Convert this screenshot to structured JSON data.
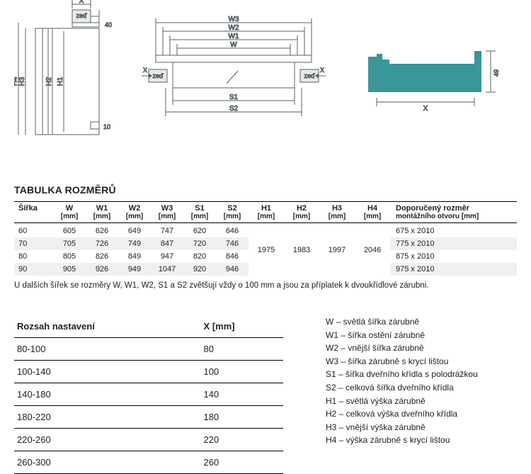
{
  "diagrams": {
    "front": {
      "x_label": "X",
      "zed_label": "zeď",
      "offset_label": "40",
      "h4": "H4",
      "h3": "H3",
      "h2": "H2",
      "h1": "H1",
      "ten": "10",
      "stroke": "#5a6266",
      "stroke_light": "#a7aeb2"
    },
    "top": {
      "w": "W",
      "w1": "W1",
      "w2": "W2",
      "w3": "W3",
      "s1": "S1",
      "s2": "S2",
      "x_label": "X",
      "zed_label": "zeď",
      "stroke": "#5a6266"
    },
    "cross": {
      "x_label": "X",
      "h_label": "49",
      "fill": "#3b9698",
      "stroke": "#5a6266"
    }
  },
  "tableTitle": "TABULKA ROZMĚRŮ",
  "headers": {
    "sirka": "Šířka",
    "w": "W",
    "w1": "W1",
    "w2": "W2",
    "w3": "W3",
    "s1": "S1",
    "s2": "S2",
    "h1": "H1",
    "h2": "H2",
    "h3": "H3",
    "h4": "H4",
    "rec": "Doporučený rozměr",
    "rec2": "montážního otvoru [mm]",
    "unit": "[mm]"
  },
  "rows": [
    {
      "sirka": "60",
      "w": "605",
      "w1": "626",
      "w2": "649",
      "w3": "747",
      "s1": "620",
      "s2": "646",
      "rec": "675 x 2010"
    },
    {
      "sirka": "70",
      "w": "705",
      "w1": "726",
      "w2": "749",
      "w3": "847",
      "s1": "720",
      "s2": "746",
      "rec": "775 x 2010"
    },
    {
      "sirka": "80",
      "w": "805",
      "w1": "826",
      "w2": "849",
      "w3": "947",
      "s1": "820",
      "s2": "846",
      "rec": "875 x 2010"
    },
    {
      "sirka": "90",
      "w": "905",
      "w1": "926",
      "w2": "949",
      "w3": "1047",
      "s1": "920",
      "s2": "946",
      "rec": "975 x 2010"
    }
  ],
  "hvals": {
    "h1": "1975",
    "h2": "1983",
    "h3": "1997",
    "h4": "2046"
  },
  "note": "U dalších šířek se rozměry W, W1, W2, S1 a S2 zvětšují vždy o 100 mm a jsou za příplatek k dvoukřídlové zárubni.",
  "rangeHeaders": {
    "range": "Rozsah nastavení",
    "x": "X [mm]"
  },
  "rangeRows": [
    {
      "r": "80-100",
      "x": "80"
    },
    {
      "r": "100-140",
      "x": "100"
    },
    {
      "r": "140-180",
      "x": "140"
    },
    {
      "r": "180-220",
      "x": "180"
    },
    {
      "r": "220-260",
      "x": "220"
    },
    {
      "r": "260-300",
      "x": "260"
    }
  ],
  "legend": [
    "W – světlá šířka zárubně",
    "W1 – šířka ostění zárubně",
    "W2 – vnější šířka zárubně",
    "W3 – šířka zárubně s krycí lištou",
    "S1 – šířka dveřního křídla s polodrážkou",
    "S2 – celková šířka dveřního křídla",
    "H1 – světlá výška zárubně",
    "H2 – celková výška dveřního křídla",
    "H3 – vnější výška zárubně",
    "H4 – výška zárubně s krycí lištou"
  ]
}
